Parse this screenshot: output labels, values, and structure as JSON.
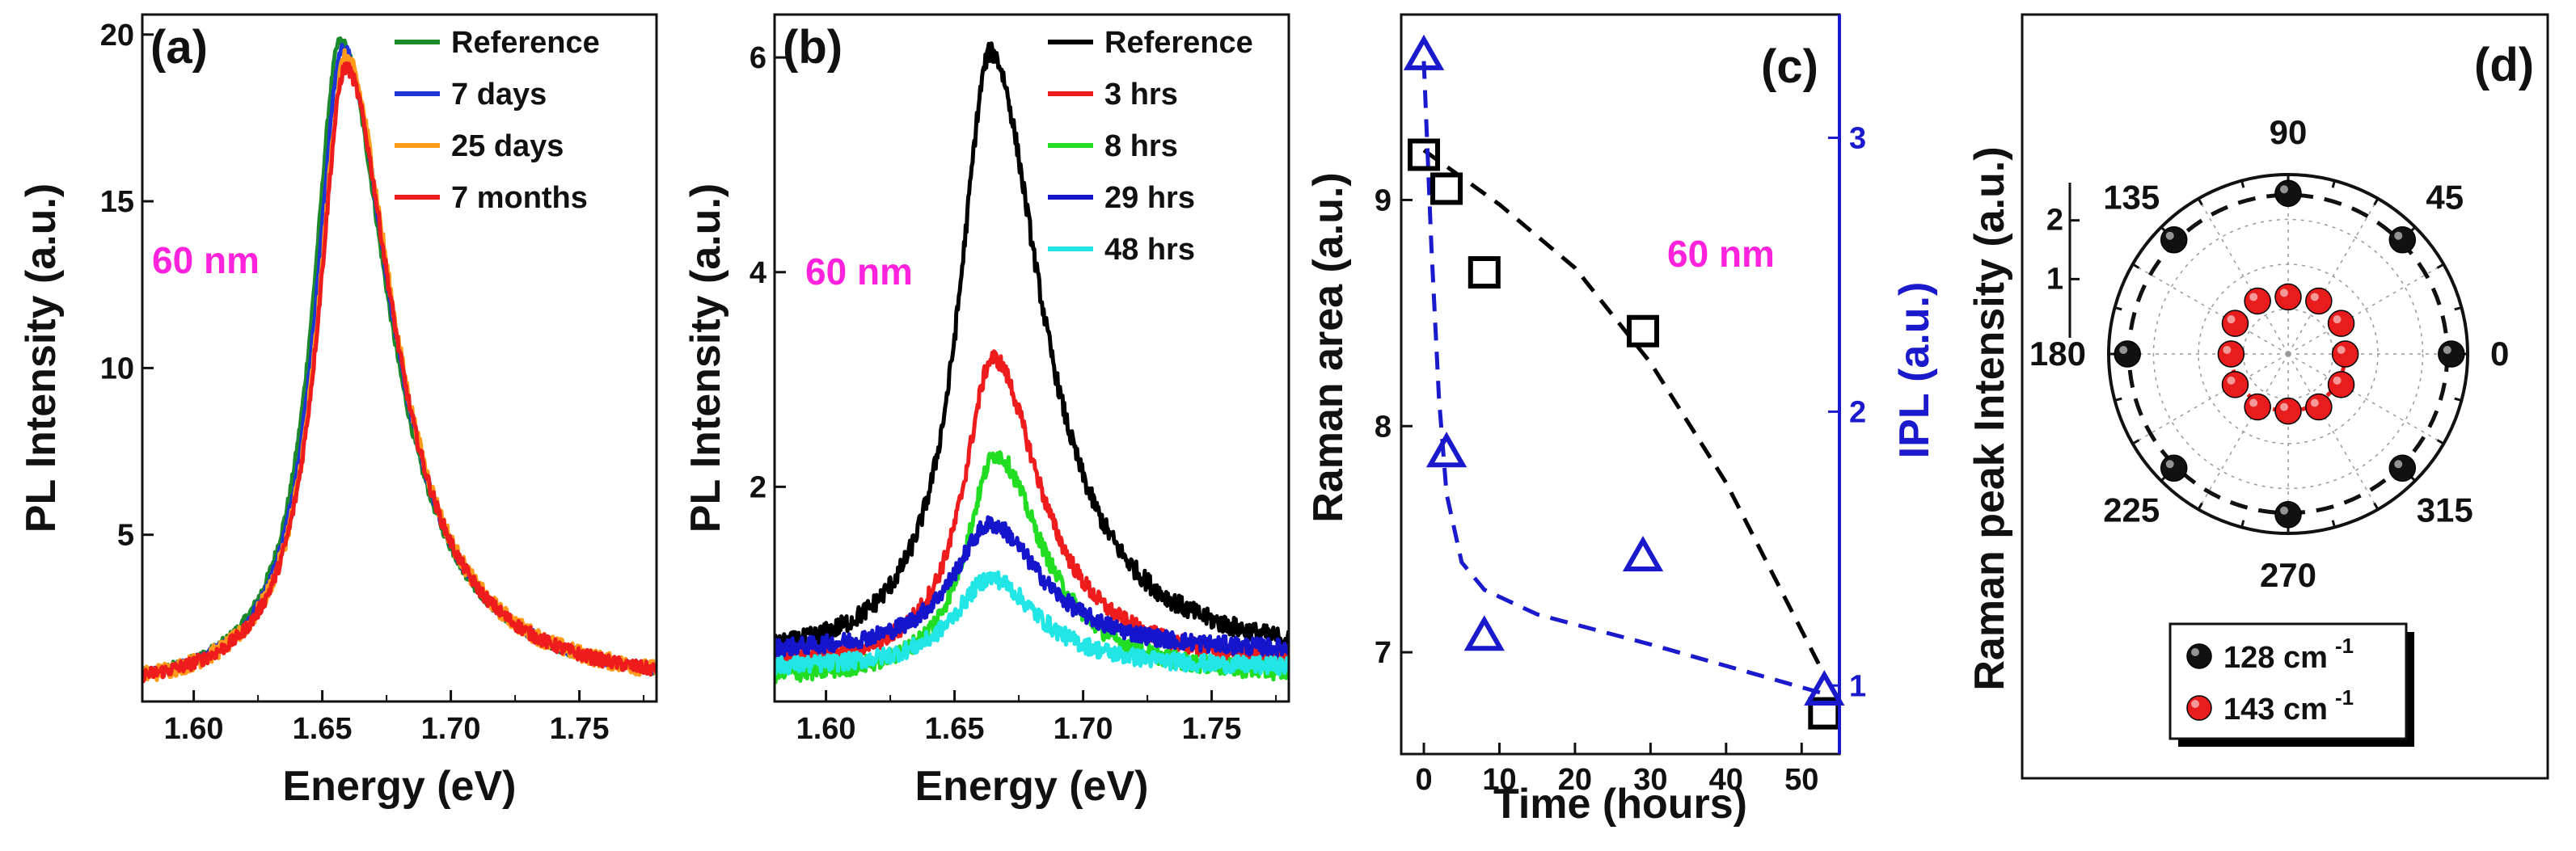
{
  "chart_data": [
    {
      "panel": "(a)",
      "type": "line",
      "xlabel": "Energy (eV)",
      "ylabel": "PL Intensity (a.u.)",
      "xlim": [
        1.58,
        1.78
      ],
      "ylim": [
        0,
        20.6
      ],
      "xticks": [
        1.6,
        1.65,
        1.7,
        1.75
      ],
      "xtick_labels": [
        "1.60",
        "1.65",
        "1.70",
        "1.75"
      ],
      "yticks": [
        5,
        10,
        15,
        20
      ],
      "ytick_labels": [
        "5",
        "10",
        "15",
        "20"
      ],
      "annotation": "60 nm",
      "series": [
        {
          "name": "Reference",
          "color": "#1a8a2a",
          "peak_x": 1.657,
          "peak_y": 19.8,
          "width_left": 0.013,
          "width_right": 0.023,
          "noise": 0.15,
          "baseline": 0.3
        },
        {
          "name": "7 days",
          "color": "#1f35d8",
          "peak_x": 1.658,
          "peak_y": 19.6,
          "width_left": 0.013,
          "width_right": 0.023,
          "noise": 0.15,
          "baseline": 0.3
        },
        {
          "name": "25 days",
          "color": "#ff9a1a",
          "peak_x": 1.659,
          "peak_y": 19.3,
          "width_left": 0.013,
          "width_right": 0.023,
          "noise": 0.25,
          "baseline": 0.3
        },
        {
          "name": "7 months",
          "color": "#ee1c1c",
          "peak_x": 1.659,
          "peak_y": 19.0,
          "width_left": 0.013,
          "width_right": 0.023,
          "noise": 0.2,
          "baseline": 0.3
        }
      ]
    },
    {
      "panel": "(b)",
      "type": "line",
      "xlabel": "Energy (eV)",
      "ylabel": "PL Intensity (a.u.)",
      "xlim": [
        1.58,
        1.78
      ],
      "ylim": [
        0,
        6.4
      ],
      "xticks": [
        1.6,
        1.65,
        1.7,
        1.75
      ],
      "xtick_labels": [
        "1.60",
        "1.65",
        "1.70",
        "1.75"
      ],
      "yticks": [
        2,
        4,
        6
      ],
      "ytick_labels": [
        "2",
        "4",
        "6"
      ],
      "annotation": "60 nm",
      "series": [
        {
          "name": "Reference",
          "color": "#000000",
          "peak_x": 1.664,
          "peak_y": 6.05,
          "width_left": 0.015,
          "width_right": 0.024,
          "noise": 0.09,
          "baseline": 0.35
        },
        {
          "name": "3 hrs",
          "color": "#ee1c1c",
          "peak_x": 1.665,
          "peak_y": 3.2,
          "width_left": 0.014,
          "width_right": 0.022,
          "noise": 0.08,
          "baseline": 0.3
        },
        {
          "name": "8 hrs",
          "color": "#22dd22",
          "peak_x": 1.666,
          "peak_y": 2.3,
          "width_left": 0.014,
          "width_right": 0.022,
          "noise": 0.08,
          "baseline": 0.2
        },
        {
          "name": "29 hrs",
          "color": "#1515cc",
          "peak_x": 1.664,
          "peak_y": 1.65,
          "width_left": 0.018,
          "width_right": 0.024,
          "noise": 0.08,
          "baseline": 0.45
        },
        {
          "name": "48 hrs",
          "color": "#22e5e5",
          "peak_x": 1.664,
          "peak_y": 1.15,
          "width_left": 0.017,
          "width_right": 0.022,
          "noise": 0.08,
          "baseline": 0.3
        }
      ]
    },
    {
      "panel": "(c)",
      "type": "scatter",
      "xlabel": "Time (hours)",
      "ylabel": "Raman area (a.u.)",
      "ylabel_right": "IPL (a.u.)",
      "xlim": [
        -3,
        55
      ],
      "ylim": [
        6.55,
        9.82
      ],
      "ylim_right": [
        0.75,
        3.45
      ],
      "xticks": [
        0,
        10,
        20,
        30,
        40,
        50
      ],
      "xtick_labels": [
        "0",
        "10",
        "20",
        "30",
        "40",
        "50"
      ],
      "yticks": [
        7,
        8,
        9
      ],
      "ytick_labels": [
        "7",
        "8",
        "9"
      ],
      "yticks_right": [
        1,
        2,
        3
      ],
      "ytick_labels_right": [
        "1",
        "2",
        "3"
      ],
      "annotation": "60 nm",
      "raman_color": "#000000",
      "ipl_color": "#1a1acc",
      "raman_points": [
        {
          "x": 0,
          "y": 9.2
        },
        {
          "x": 3,
          "y": 9.05
        },
        {
          "x": 8,
          "y": 8.68
        },
        {
          "x": 29,
          "y": 8.42
        },
        {
          "x": 53,
          "y": 6.73
        }
      ],
      "ipl_points": [
        {
          "x": 0,
          "y": 3.3
        },
        {
          "x": 3,
          "y": 1.85
        },
        {
          "x": 8,
          "y": 1.18
        },
        {
          "x": 29,
          "y": 1.47
        },
        {
          "x": 53,
          "y": 0.98
        }
      ],
      "raman_fit": [
        {
          "x": 0,
          "y": 9.22
        },
        {
          "x": 10,
          "y": 8.98
        },
        {
          "x": 20,
          "y": 8.7
        },
        {
          "x": 30,
          "y": 8.28
        },
        {
          "x": 40,
          "y": 7.75
        },
        {
          "x": 53,
          "y": 6.9
        }
      ],
      "ipl_fit": [
        {
          "x": 0,
          "y": 3.28
        },
        {
          "x": 1,
          "y": 2.6
        },
        {
          "x": 2,
          "y": 2.05
        },
        {
          "x": 3,
          "y": 1.7
        },
        {
          "x": 5,
          "y": 1.45
        },
        {
          "x": 8,
          "y": 1.35
        },
        {
          "x": 15,
          "y": 1.26
        },
        {
          "x": 30,
          "y": 1.15
        },
        {
          "x": 53,
          "y": 0.97
        }
      ]
    },
    {
      "panel": "(d)",
      "type": "polar",
      "ylabel": "Raman peak Intensity (a.u.)",
      "rmax": 2.2,
      "radial_ticks": [
        1,
        2
      ],
      "radial_tick_labels": [
        "1",
        "2"
      ],
      "angle_labels": [
        "0",
        "45",
        "90",
        "135",
        "180",
        "225",
        "270",
        "315"
      ],
      "angles": [
        0,
        45,
        90,
        135,
        180,
        225,
        270,
        315
      ],
      "series": [
        {
          "name": "128 cm",
          "superscript": "-1",
          "color": "#111111",
          "fit_radius": 1.95,
          "points": [
            {
              "angle": 0,
              "r": 2.0
            },
            {
              "angle": 45,
              "r": 1.98
            },
            {
              "angle": 90,
              "r": 1.97
            },
            {
              "angle": 135,
              "r": 1.98
            },
            {
              "angle": 180,
              "r": 1.97
            },
            {
              "angle": 225,
              "r": 1.98
            },
            {
              "angle": 270,
              "r": 1.97
            },
            {
              "angle": 315,
              "r": 1.98
            }
          ]
        },
        {
          "name": "143 cm",
          "superscript": "-1",
          "color": "#e81c1c",
          "fit_radius": 0.7,
          "points": [
            {
              "angle": 0,
              "r": 0.7
            },
            {
              "angle": 30,
              "r": 0.75
            },
            {
              "angle": 60,
              "r": 0.75
            },
            {
              "angle": 90,
              "r": 0.7
            },
            {
              "angle": 120,
              "r": 0.75
            },
            {
              "angle": 150,
              "r": 0.75
            },
            {
              "angle": 180,
              "r": 0.7
            },
            {
              "angle": 210,
              "r": 0.75
            },
            {
              "angle": 240,
              "r": 0.75
            },
            {
              "angle": 270,
              "r": 0.7
            },
            {
              "angle": 300,
              "r": 0.75
            },
            {
              "angle": 330,
              "r": 0.75
            }
          ]
        }
      ]
    }
  ]
}
